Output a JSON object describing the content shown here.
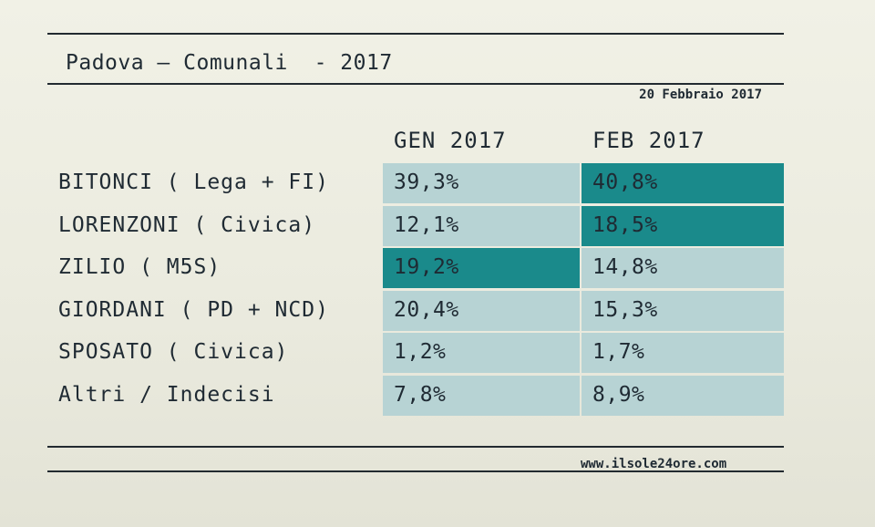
{
  "title": "Padova – Comunali  - 2017",
  "date": "20 Febbraio 2017",
  "source": "www.ilsole24ore.com",
  "colors": {
    "highlight": "#1a8a8b",
    "cell": "#b7d3d4"
  },
  "chart_data": {
    "type": "table",
    "columns": [
      "GEN 2017",
      "FEB 2017"
    ],
    "rows": [
      {
        "label": "BITONCI ( Lega + FI)",
        "values": [
          "39,3%",
          "40,8%"
        ],
        "highlight": [
          false,
          true
        ]
      },
      {
        "label": "LORENZONI ( Civica)",
        "values": [
          "12,1%",
          "18,5%"
        ],
        "highlight": [
          false,
          true
        ]
      },
      {
        "label": "ZILIO ( M5S)",
        "values": [
          "19,2%",
          "14,8%"
        ],
        "highlight": [
          true,
          false
        ]
      },
      {
        "label": "GIORDANI ( PD + NCD)",
        "values": [
          "20,4%",
          "15,3%"
        ],
        "highlight": [
          false,
          false
        ]
      },
      {
        "label": "SPOSATO ( Civica)",
        "values": [
          "1,2%",
          "1,7%"
        ],
        "highlight": [
          false,
          false
        ]
      },
      {
        "label": "Altri / Indecisi",
        "values": [
          "7,8%",
          "8,9%"
        ],
        "highlight": [
          false,
          false
        ]
      }
    ]
  }
}
